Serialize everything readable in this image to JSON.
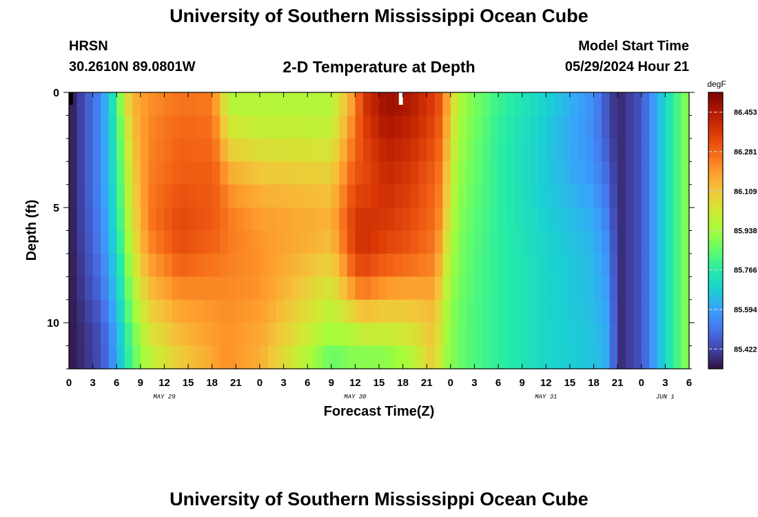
{
  "header": {
    "title": "University of Southern Mississippi Ocean Cube",
    "station": "HRSN",
    "coordinates": "30.2610N  89.0801W",
    "subtitle": "2-D Temperature at Depth",
    "model_start_label": "Model Start Time",
    "model_start_value": "05/29/2024 Hour 21"
  },
  "footer": {
    "title": "University of Southern Mississippi Ocean Cube"
  },
  "chart_data": {
    "type": "heatmap",
    "xlabel": "Forecast Time(Z)",
    "ylabel": "Depth (ft)",
    "x_unit": "hours since 2024-05-29 00Z",
    "x_range": [
      0,
      78
    ],
    "y_range": [
      0,
      12
    ],
    "y_inverted": true,
    "x_tick_labels": [
      "0",
      "3",
      "6",
      "9",
      "12",
      "15",
      "18",
      "21",
      "0",
      "3",
      "6",
      "9",
      "12",
      "15",
      "18",
      "21",
      "0",
      "3",
      "6",
      "9",
      "12",
      "15",
      "18",
      "21",
      "0",
      "3",
      "6"
    ],
    "y_tick_labels": [
      "0",
      "5",
      "10"
    ],
    "day_labels": [
      "MAY 29",
      "MAY 30",
      "MAY 31",
      "JUN 1"
    ],
    "colorbar": {
      "unit": "degF",
      "min": 85.336,
      "max": 86.539,
      "tick_labels": [
        "86.453",
        "86.281",
        "86.109",
        "85.938",
        "85.766",
        "85.594",
        "85.422"
      ],
      "tick_values": [
        86.453,
        86.281,
        86.109,
        85.938,
        85.766,
        85.594,
        85.422
      ]
    },
    "depth_levels": [
      0,
      1,
      2,
      3,
      4,
      5,
      6,
      7,
      8,
      9,
      10,
      11,
      12
    ],
    "profile_hours": [
      0,
      4,
      6,
      7,
      8,
      10,
      14,
      18,
      19,
      20,
      24,
      33,
      36,
      37,
      40,
      43,
      46,
      47,
      48,
      49,
      50,
      54,
      60,
      66,
      68,
      69,
      72,
      75,
      77,
      78
    ],
    "profiles": [
      [
        85.34,
        85.34,
        85.34,
        85.34,
        85.34,
        85.34,
        85.34,
        85.34,
        85.34,
        85.34,
        85.34,
        85.34,
        85.34
      ],
      [
        85.55,
        85.55,
        85.55,
        85.55,
        85.55,
        85.54,
        85.53,
        85.52,
        85.5,
        85.48,
        85.45,
        85.44,
        85.44
      ],
      [
        85.8,
        85.78,
        85.77,
        85.76,
        85.75,
        85.74,
        85.73,
        85.7,
        85.68,
        85.66,
        85.62,
        85.6,
        85.6
      ],
      [
        86.04,
        85.98,
        85.95,
        85.93,
        85.92,
        85.9,
        85.88,
        85.85,
        85.82,
        85.79,
        85.76,
        85.73,
        85.73
      ],
      [
        86.15,
        86.13,
        86.11,
        86.09,
        86.07,
        86.05,
        86.03,
        86.0,
        85.96,
        85.92,
        85.88,
        85.84,
        85.84
      ],
      [
        86.2,
        86.22,
        86.23,
        86.23,
        86.24,
        86.25,
        86.24,
        86.2,
        86.15,
        86.1,
        86.05,
        86.0,
        85.95
      ],
      [
        86.25,
        86.27,
        86.28,
        86.29,
        86.3,
        86.33,
        86.34,
        86.31,
        86.26,
        86.2,
        86.15,
        86.12,
        86.08
      ],
      [
        86.24,
        86.26,
        86.27,
        86.28,
        86.3,
        86.3,
        86.3,
        86.27,
        86.24,
        86.21,
        86.2,
        86.18,
        86.16
      ],
      [
        86.1,
        86.15,
        86.2,
        86.24,
        86.27,
        86.28,
        86.28,
        86.26,
        86.24,
        86.22,
        86.2,
        86.2,
        86.2
      ],
      [
        85.94,
        86.0,
        86.05,
        86.13,
        86.2,
        86.24,
        86.25,
        86.24,
        86.23,
        86.22,
        86.21,
        86.21,
        86.21
      ],
      [
        85.96,
        85.98,
        86.02,
        86.08,
        86.13,
        86.18,
        86.2,
        86.21,
        86.21,
        86.2,
        86.18,
        86.16,
        86.16
      ],
      [
        85.95,
        85.98,
        86.0,
        86.06,
        86.1,
        86.14,
        86.15,
        86.1,
        86.05,
        86.0,
        85.96,
        85.9,
        85.82
      ],
      [
        86.2,
        86.24,
        86.27,
        86.3,
        86.33,
        86.36,
        86.38,
        86.35,
        86.28,
        86.15,
        86.02,
        85.93,
        85.88
      ],
      [
        86.38,
        86.36,
        86.34,
        86.32,
        86.33,
        86.36,
        86.4,
        86.38,
        86.3,
        86.2,
        86.05,
        85.95,
        85.85
      ],
      [
        86.5,
        86.48,
        86.45,
        86.42,
        86.4,
        86.38,
        86.36,
        86.32,
        86.25,
        86.14,
        86.05,
        85.96,
        85.86
      ],
      [
        86.46,
        86.44,
        86.41,
        86.38,
        86.36,
        86.34,
        86.32,
        86.3,
        86.22,
        86.14,
        86.06,
        86.0,
        85.92
      ],
      [
        86.36,
        86.34,
        86.32,
        86.3,
        86.28,
        86.27,
        86.26,
        86.24,
        86.22,
        86.15,
        86.12,
        86.12,
        86.1
      ],
      [
        86.3,
        86.28,
        86.26,
        86.24,
        86.22,
        86.2,
        86.18,
        86.12,
        86.06,
        86.02,
        85.98,
        85.96,
        85.94
      ],
      [
        86.1,
        86.08,
        86.05,
        86.02,
        86.0,
        85.98,
        85.96,
        85.94,
        85.93,
        85.92,
        85.91,
        85.9,
        85.9
      ],
      [
        85.97,
        85.96,
        85.95,
        85.94,
        85.93,
        85.92,
        85.91,
        85.9,
        85.89,
        85.88,
        85.87,
        85.87,
        85.87
      ],
      [
        85.92,
        85.91,
        85.9,
        85.89,
        85.88,
        85.87,
        85.86,
        85.85,
        85.85,
        85.84,
        85.84,
        85.84,
        85.84
      ],
      [
        85.8,
        85.79,
        85.78,
        85.78,
        85.78,
        85.78,
        85.78,
        85.78,
        85.78,
        85.78,
        85.78,
        85.78,
        85.78
      ],
      [
        85.7,
        85.68,
        85.67,
        85.67,
        85.67,
        85.68,
        85.69,
        85.7,
        85.7,
        85.7,
        85.7,
        85.7,
        85.7
      ],
      [
        85.56,
        85.55,
        85.55,
        85.56,
        85.58,
        85.6,
        85.62,
        85.63,
        85.64,
        85.64,
        85.65,
        85.66,
        85.66
      ],
      [
        85.43,
        85.43,
        85.44,
        85.46,
        85.48,
        85.5,
        85.53,
        85.55,
        85.56,
        85.58,
        85.59,
        85.6,
        85.6
      ],
      [
        85.37,
        85.37,
        85.37,
        85.37,
        85.37,
        85.37,
        85.37,
        85.37,
        85.37,
        85.37,
        85.37,
        85.37,
        85.37
      ],
      [
        85.45,
        85.45,
        85.45,
        85.45,
        85.45,
        85.45,
        85.45,
        85.45,
        85.45,
        85.45,
        85.45,
        85.45,
        85.45
      ],
      [
        85.7,
        85.7,
        85.7,
        85.7,
        85.7,
        85.7,
        85.7,
        85.7,
        85.7,
        85.7,
        85.7,
        85.7,
        85.7
      ],
      [
        85.85,
        85.85,
        85.85,
        85.85,
        85.85,
        85.85,
        85.85,
        85.85,
        85.85,
        85.85,
        85.85,
        85.85,
        85.85
      ],
      [
        85.92,
        85.92,
        85.92,
        85.92,
        85.92,
        85.92,
        85.92,
        85.92,
        85.92,
        85.92,
        85.92,
        85.92,
        85.92
      ]
    ],
    "missing_cells": [
      {
        "hour": 0,
        "depth": 0,
        "color": "#000000"
      },
      {
        "hour": 41.5,
        "depth": 0,
        "color": "#ffffff"
      }
    ],
    "colormap": [
      "#30123b",
      "#4145ab",
      "#4675ed",
      "#39a2fc",
      "#1bcfd4",
      "#24eca6",
      "#61fc6c",
      "#a4fc3b",
      "#d1e834",
      "#f3c63a",
      "#fe9b2d",
      "#f36315",
      "#d93806",
      "#b11901",
      "#7a0402"
    ]
  }
}
